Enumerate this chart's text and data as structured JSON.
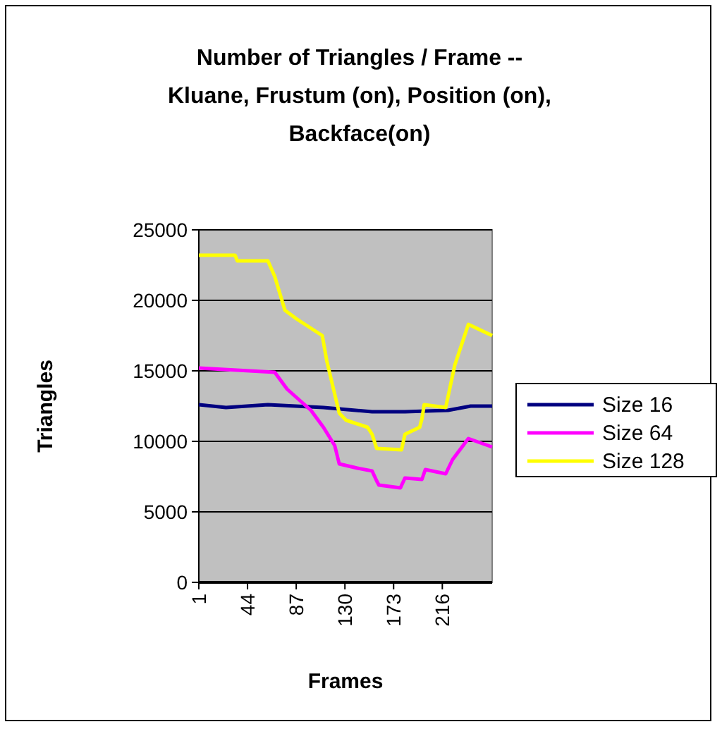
{
  "chart_data": {
    "type": "line",
    "title": "Number of Triangles / Frame  --\nKluane, Frustum (on), Position (on),\nBackface(on)",
    "xlabel": "Frames",
    "ylabel": "Triangles",
    "xlim": [
      1,
      260
    ],
    "xticks": [
      1,
      44,
      87,
      130,
      173,
      216
    ],
    "ylim": [
      0,
      25000
    ],
    "yticks": [
      0,
      5000,
      10000,
      15000,
      20000,
      25000
    ],
    "grid": "y",
    "legend": "right",
    "line_style": "solid",
    "marker": "none",
    "series": [
      {
        "name": "Size 16",
        "color": "#000080",
        "x": [
          1,
          25,
          62,
          111,
          154,
          183,
          221,
          241,
          260
        ],
        "values": [
          12600,
          12400,
          12600,
          12400,
          12100,
          12100,
          12200,
          12500,
          12500
        ]
      },
      {
        "name": "Size 64",
        "color": "#ff00ff",
        "x": [
          1,
          68,
          79,
          100,
          111,
          121,
          125,
          141,
          154,
          158,
          160,
          179,
          183,
          198,
          201,
          219,
          225,
          239,
          260
        ],
        "values": [
          15200,
          14900,
          13700,
          12200,
          11000,
          9700,
          8400,
          8100,
          7900,
          7200,
          6900,
          6700,
          7400,
          7300,
          8000,
          7700,
          8700,
          10200,
          9600
        ]
      },
      {
        "name": "Size 128",
        "color": "#ffff00",
        "x": [
          1,
          33,
          35,
          62,
          68,
          77,
          87,
          110,
          114,
          125,
          131,
          150,
          154,
          158,
          180,
          183,
          196,
          198,
          200,
          219,
          227,
          239,
          260
        ],
        "values": [
          23200,
          23200,
          22800,
          22800,
          21700,
          19300,
          18700,
          17500,
          15700,
          12000,
          11500,
          11000,
          10500,
          9500,
          9400,
          10500,
          11000,
          11600,
          12600,
          12400,
          15400,
          18300,
          17500
        ]
      }
    ]
  }
}
